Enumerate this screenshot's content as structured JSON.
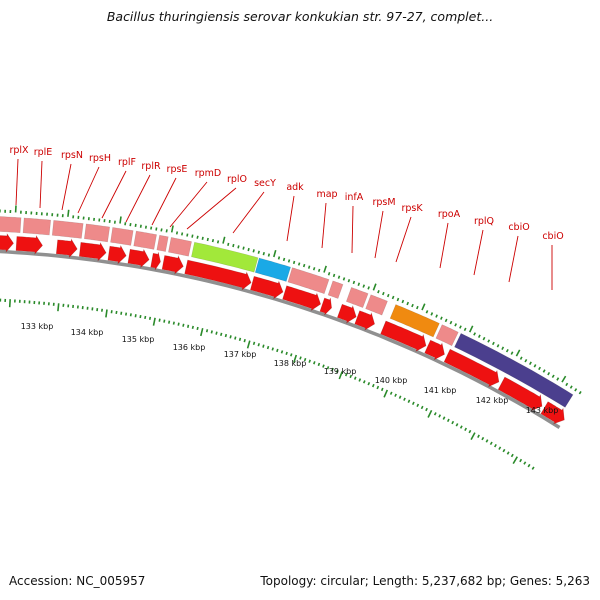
{
  "header": {
    "title": "Bacillus thuringiensis serovar konkukian str. 97-27, complet..."
  },
  "footer": {
    "accession": "Accession: NC_005957",
    "summary": "Topology: circular; Length: 5,237,682 bp; Genes: 5,263"
  },
  "gene_labels": [
    "rplX",
    "rplE",
    "rpsN",
    "rpsH",
    "rplF",
    "rplR",
    "rpsE",
    "rpmD",
    "rplO",
    "secY",
    "adk",
    "map",
    "infA",
    "rpsM",
    "rpsK",
    "rpoA",
    "rplQ",
    "cbiO",
    "cbiO"
  ],
  "scale_labels": [
    "133 kbp",
    "134 kbp",
    "135 kbp",
    "136 kbp",
    "137 kbp",
    "138 kbp",
    "139 kbp",
    "140 kbp",
    "141 kbp",
    "142 kbp",
    "143 kbp"
  ],
  "colors": {
    "gene_label": "#cc0000",
    "ribosomal_gene": "#ee8a8a",
    "secY_gene": "#a2e83a",
    "adk_gene": "#1aa9e6",
    "rpoA_gene": "#f08a10",
    "cbiO_gene": "#4b3f8e",
    "cds_arrow": "#ee1111",
    "backbone": "#909090",
    "tick": "#2a8a2a"
  }
}
